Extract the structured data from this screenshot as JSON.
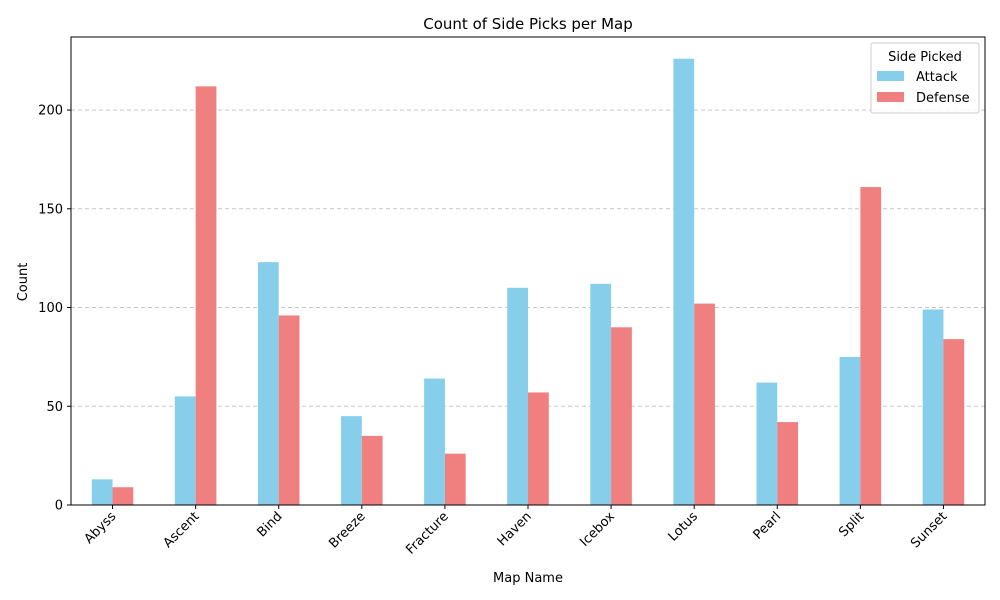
{
  "chart_data": {
    "type": "bar",
    "title": "Count of Side Picks per Map",
    "xlabel": "Map Name",
    "ylabel": "Count",
    "categories": [
      "Abyss",
      "Ascent",
      "Bind",
      "Breeze",
      "Fracture",
      "Haven",
      "Icebox",
      "Lotus",
      "Pearl",
      "Split",
      "Sunset"
    ],
    "series": [
      {
        "name": "Attack",
        "color": "#87ceeb",
        "values": [
          13,
          55,
          123,
          45,
          64,
          110,
          112,
          226,
          62,
          75,
          99
        ]
      },
      {
        "name": "Defense",
        "color": "#f08080",
        "values": [
          9,
          212,
          96,
          35,
          26,
          57,
          90,
          102,
          42,
          161,
          84
        ]
      }
    ],
    "ylim": [
      0,
      237
    ],
    "yticks": [
      0,
      50,
      100,
      150,
      200
    ],
    "grid": "y-dashed",
    "legend": {
      "title": "Side Picked",
      "placement": "top-right"
    },
    "xtick_rotation": 45
  }
}
